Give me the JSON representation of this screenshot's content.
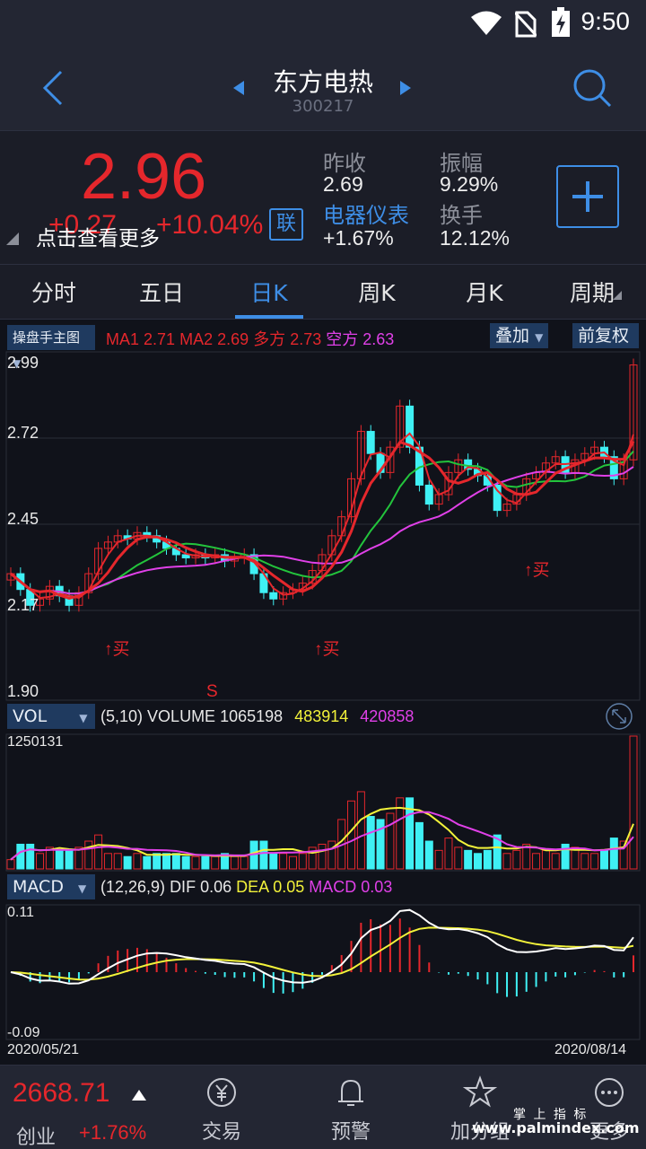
{
  "status": {
    "time": "9:50"
  },
  "header": {
    "title": "东方电热",
    "code": "300217"
  },
  "quote": {
    "price": "2.96",
    "change": "+0.27",
    "change_pct": "+10.04%",
    "tap_more": "点击查看更多",
    "lian": "联",
    "prev_close_label": "昨收",
    "prev_close": "2.69",
    "amplitude_label": "振幅",
    "amplitude": "9.29%",
    "sector_label": "电器仪表",
    "sector_change": "+1.67%",
    "turnover_label": "换手",
    "turnover": "12.12%"
  },
  "tabs": [
    "分时",
    "五日",
    "日K",
    "周K",
    "月K",
    "周期"
  ],
  "chart": {
    "main_selector": "操盘手主图",
    "ma1_label": "MA1",
    "ma1": "2.71",
    "ma2_label": "MA2",
    "ma2": "2.69",
    "duo_label": "多方",
    "duo": "2.73",
    "kong_label": "空方",
    "kong": "2.63",
    "overlay": "叠加",
    "adjust": "前复权",
    "price_ticks": [
      "2.99",
      "2.72",
      "2.45",
      "2.17",
      "1.90"
    ],
    "signals": {
      "buy": "↑买",
      "sell": "S"
    },
    "vol_selector": "VOL",
    "vol_params": "(5,10)",
    "vol_label": "VOLUME",
    "vol_value": "1065198",
    "vol_ma5": "483914",
    "vol_ma10": "420858",
    "vol_max": "1250131",
    "macd_selector": "MACD",
    "macd_params": "(12,26,9)",
    "dif_label": "DIF",
    "dif": "0.06",
    "dea_label": "DEA",
    "dea": "0.05",
    "macd_label": "MACD",
    "macd": "0.03",
    "macd_top": "0.11",
    "macd_bottom": "-0.09",
    "date_start": "2020/05/21",
    "date_end": "2020/08/14"
  },
  "bottom": {
    "index_value": "2668.71",
    "index_name": "创业",
    "index_change": "+1.76%",
    "nav": [
      "交易",
      "预警",
      "加分组",
      "更多"
    ],
    "watermark_top": "掌 上 指 标",
    "watermark_bottom": "www.palmindex.com"
  },
  "colors": {
    "up": "#e5272c",
    "down": "#3ff0f4",
    "ma_pink": "#e040e8",
    "yellow": "#f2f23a",
    "accent": "#3e8ee6"
  }
}
